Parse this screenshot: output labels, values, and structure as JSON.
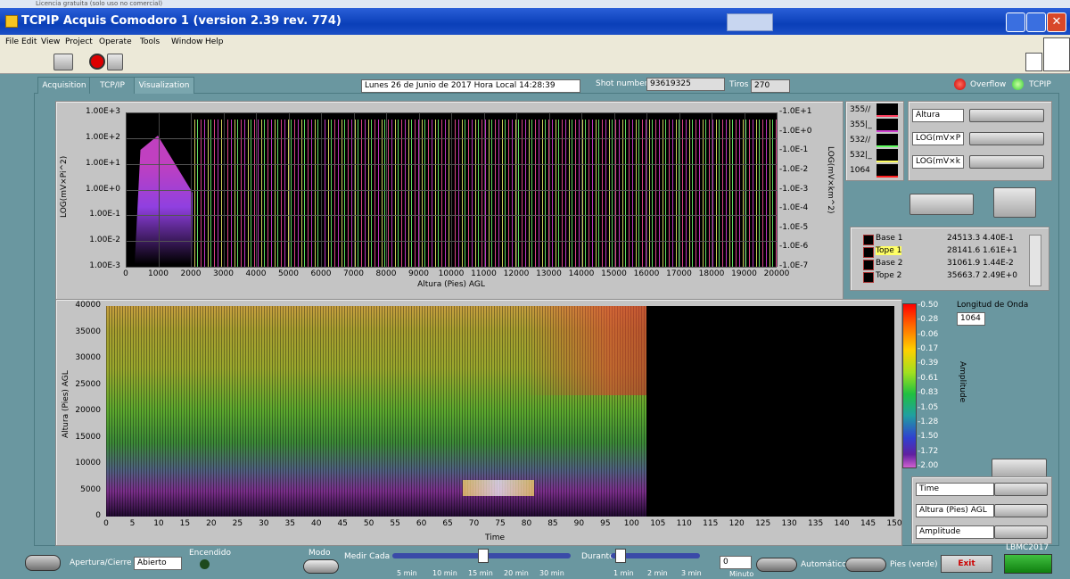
{
  "license_note": "Licencia gratuita (solo uso no comercial)",
  "window": {
    "title": "TCPIP Acquis Comodoro 1 (version 2.39 rev. 774)"
  },
  "menu": [
    "File",
    "Edit",
    "View",
    "Project",
    "Operate",
    "Tools",
    "Window",
    "Help"
  ],
  "tabs": [
    "Acquisition",
    "TCP/IP",
    "Visualization"
  ],
  "status": {
    "datetime": "Lunes 26 de Junio de 2017  Hora Local 14:28:39",
    "shot_label": "Shot number",
    "shot": "93619325",
    "tiros_label": "Tiros",
    "tiros": "270",
    "overflow": "Overflow",
    "tcpip": "TCPIP"
  },
  "top_plot": {
    "yticks": [
      "1.00E+3",
      "1.00E+2",
      "1.00E+1",
      "1.00E+0",
      "1.00E-1",
      "1.00E-2",
      "1.00E-3"
    ],
    "y2ticks": [
      "-1.0E+1",
      "-1.0E+0",
      "-1.0E-1",
      "-1.0E-2",
      "-1.0E-3",
      "-1.0E-4",
      "-1.0E-5",
      "-1.0E-6",
      "-1.0E-7"
    ],
    "xticks": [
      "0",
      "1000",
      "2000",
      "3000",
      "4000",
      "5000",
      "6000",
      "7000",
      "8000",
      "9000",
      "10000",
      "11000",
      "12000",
      "13000",
      "14000",
      "15000",
      "16000",
      "17000",
      "18000",
      "19000",
      "20000"
    ],
    "xlabel": "Altura (Pies)  AGL",
    "ylabel": "LOG(mV×Pi^2)",
    "y2label": "LOG(mV×km^2)",
    "legend": [
      "355//",
      "355|_",
      "532//",
      "532|_",
      "1064"
    ],
    "scales": [
      "Altura",
      "LOG(mV×P",
      "LOG(mV×k"
    ]
  },
  "cursors": [
    {
      "name": "Base 1",
      "x": "24513.3",
      "y": "4.40E-1"
    },
    {
      "name": "Tope 1",
      "x": "28141.6",
      "y": "1.61E+1"
    },
    {
      "name": "Base 2",
      "x": "31061.9",
      "y": "1.44E-2"
    },
    {
      "name": "Tope 2",
      "x": "35663.7",
      "y": "2.49E+0"
    }
  ],
  "bottom_plot": {
    "yticks": [
      "40000",
      "35000",
      "30000",
      "25000",
      "20000",
      "15000",
      "10000",
      "5000",
      "0"
    ],
    "xticks": [
      "0",
      "5",
      "10",
      "15",
      "20",
      "25",
      "30",
      "35",
      "40",
      "45",
      "50",
      "55",
      "60",
      "65",
      "70",
      "75",
      "80",
      "85",
      "90",
      "95",
      "100",
      "105",
      "110",
      "115",
      "120",
      "125",
      "130",
      "135",
      "140",
      "145",
      "150"
    ],
    "xlabel": "Time",
    "ylabel": "Altura (Pies)  AGL",
    "colorbar_ticks": [
      "-0.50",
      "-0.28",
      "-0.06",
      "-0.17",
      "-0.39",
      "-0.61",
      "-0.83",
      "-1.05",
      "-1.28",
      "-1.50",
      "-1.72",
      "-2.00"
    ],
    "colorbar_label": "Amplitude",
    "wavelength_label": "Longitud de Onda",
    "wavelength": "1064",
    "scales": [
      "Time",
      "Altura (Pies)  AGL",
      "Amplitude"
    ]
  },
  "bottom_bar": {
    "apertura": "Apertura/Cierre",
    "apertura_state": "Abierto",
    "encendido": "Encendido",
    "modo": "Modo",
    "medir": "Medir Cada",
    "medir_ticks": [
      "5 min",
      "10 min",
      "15 min",
      "20 min",
      "30 min"
    ],
    "durante": "Durante",
    "durante_ticks": [
      "1 min",
      "2 min",
      "3 min"
    ],
    "minutes": "0",
    "minutes_label": "Minuto",
    "automatico": "Automático",
    "pies": "Pies (verde)",
    "exit": "Exit",
    "credit": "LBMC2017"
  }
}
